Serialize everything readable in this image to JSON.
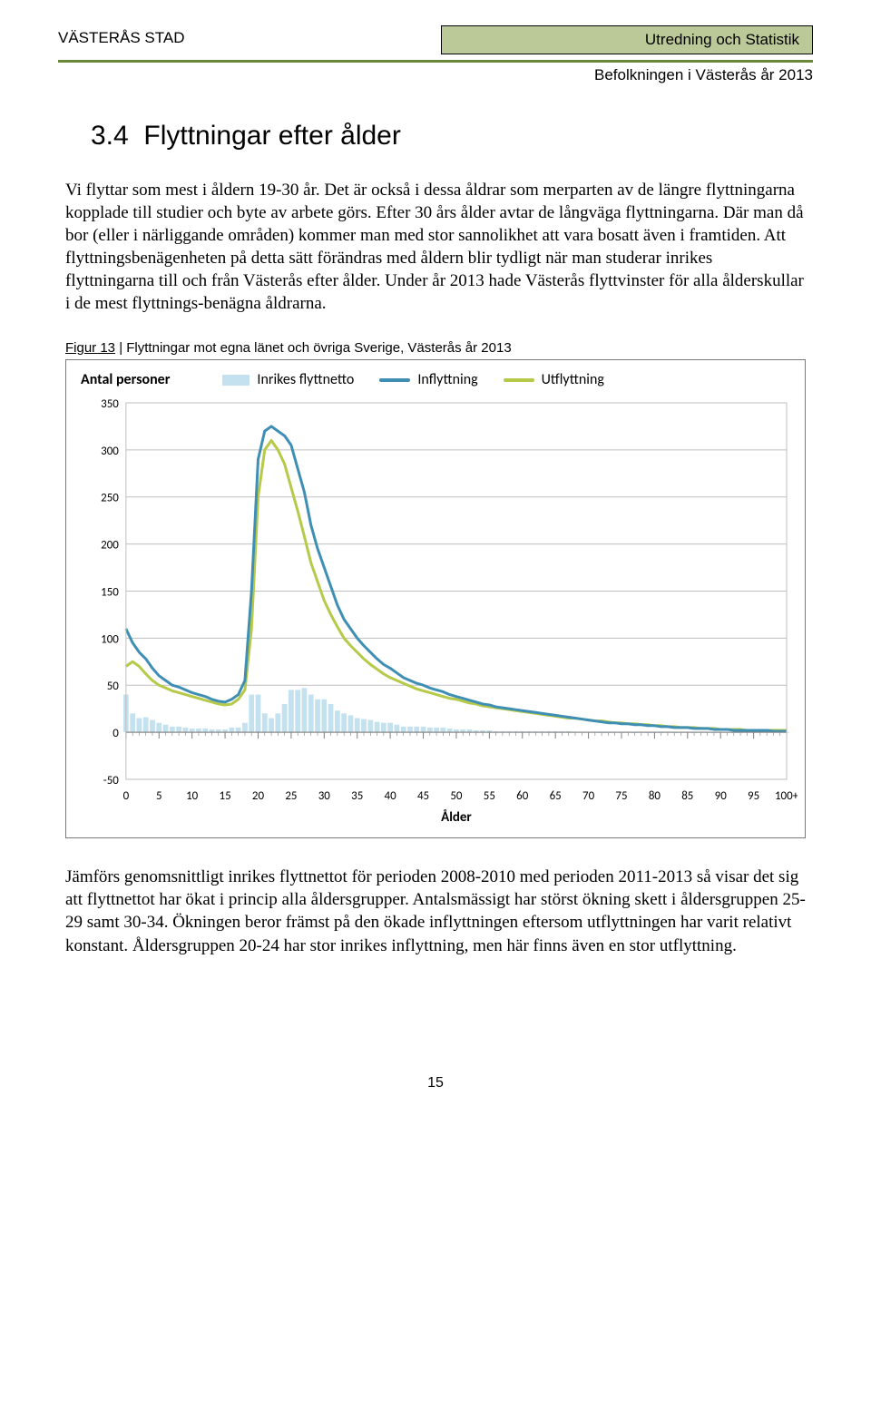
{
  "header": {
    "left": "VÄSTERÅS STAD",
    "rightBox": "Utredning och Statistik",
    "sub": "Befolkningen i Västerås år 2013"
  },
  "section": {
    "number": "3.4",
    "title": "Flyttningar efter ålder"
  },
  "paragraphs": {
    "p1": "Vi flyttar som mest i åldern 19-30 år. Det är också i dessa åldrar som merparten av de längre flyttningarna kopplade till studier och byte av arbete görs. Efter 30 års ålder avtar de långväga flyttningarna. Där man då bor (eller i närliggande områden) kommer man med stor sannolikhet att vara bosatt även i framtiden. Att flyttningsbenägenheten på detta sätt förändras med åldern blir tydligt när man studerar inrikes flyttningarna till och från Västerås efter ålder. Under år 2013 hade Västerås flyttvinster för alla ålderskullar i de mest flyttnings-benägna åldrarna.",
    "p2": "Jämförs genomsnittligt inrikes flyttnettot för perioden 2008-2010 med perioden 2011-2013 så visar det sig att flyttnettot har ökat i princip alla åldersgrupper. Antalsmässigt har störst ökning skett i åldersgruppen 25-29 samt 30-34. Ökningen beror främst på den ökade inflyttningen eftersom utflyttningen har varit relativt konstant. Åldersgruppen 20-24 har stor inrikes inflyttning, men här finns även en stor utflyttning."
  },
  "figure": {
    "label": "Figur 13",
    "caption": "Flyttningar mot egna länet och övriga Sverige, Västerås år 2013",
    "legendTitle": "Antal personer",
    "legend": {
      "netto": "Inrikes flyttnetto",
      "in": "Inflyttning",
      "ut": "Utflyttning"
    },
    "xlabel": "Ålder"
  },
  "chart": {
    "type": "line+bar",
    "ylim": [
      -50,
      350
    ],
    "ytick_step": 50,
    "xlim": [
      0,
      100
    ],
    "xtick_step": 5,
    "xticks_labels": [
      "0",
      "5",
      "10",
      "15",
      "20",
      "25",
      "30",
      "35",
      "40",
      "45",
      "50",
      "55",
      "60",
      "65",
      "70",
      "75",
      "80",
      "85",
      "90",
      "95",
      "100+"
    ],
    "colors": {
      "netto_bar": "#c3e1ef",
      "inflyttning": "#3f8fb5",
      "utflyttning": "#b6c948",
      "grid": "#bfbfbf",
      "axis": "#808080",
      "background": "#ffffff"
    },
    "line_width": 3,
    "label_fontsize": 13,
    "ages": [
      0,
      1,
      2,
      3,
      4,
      5,
      6,
      7,
      8,
      9,
      10,
      11,
      12,
      13,
      14,
      15,
      16,
      17,
      18,
      19,
      20,
      21,
      22,
      23,
      24,
      25,
      26,
      27,
      28,
      29,
      30,
      31,
      32,
      33,
      34,
      35,
      36,
      37,
      38,
      39,
      40,
      41,
      42,
      43,
      44,
      45,
      46,
      47,
      48,
      49,
      50,
      51,
      52,
      53,
      54,
      55,
      56,
      57,
      58,
      59,
      60,
      61,
      62,
      63,
      64,
      65,
      66,
      67,
      68,
      69,
      70,
      71,
      72,
      73,
      74,
      75,
      76,
      77,
      78,
      79,
      80,
      81,
      82,
      83,
      84,
      85,
      86,
      87,
      88,
      89,
      90,
      91,
      92,
      93,
      94,
      95,
      96,
      97,
      98,
      99,
      100
    ],
    "inflyttning": [
      110,
      95,
      85,
      78,
      68,
      60,
      55,
      50,
      48,
      45,
      42,
      40,
      38,
      35,
      33,
      32,
      35,
      40,
      55,
      150,
      290,
      320,
      325,
      320,
      315,
      305,
      280,
      255,
      220,
      195,
      175,
      155,
      135,
      120,
      110,
      100,
      92,
      85,
      78,
      72,
      68,
      63,
      58,
      55,
      52,
      50,
      47,
      45,
      43,
      40,
      38,
      36,
      34,
      32,
      30,
      29,
      27,
      26,
      25,
      24,
      23,
      22,
      21,
      20,
      19,
      18,
      17,
      16,
      15,
      14,
      13,
      12,
      11,
      10,
      10,
      9,
      9,
      8,
      8,
      7,
      7,
      6,
      6,
      5,
      5,
      5,
      4,
      4,
      4,
      3,
      3,
      3,
      2,
      2,
      2,
      2,
      2,
      2,
      1,
      1,
      1
    ],
    "utflyttning": [
      70,
      75,
      70,
      62,
      55,
      50,
      47,
      44,
      42,
      40,
      38,
      36,
      34,
      32,
      30,
      29,
      30,
      35,
      45,
      110,
      250,
      300,
      310,
      300,
      285,
      260,
      235,
      208,
      180,
      160,
      140,
      125,
      112,
      100,
      92,
      85,
      78,
      72,
      67,
      62,
      58,
      55,
      52,
      49,
      46,
      44,
      42,
      40,
      38,
      36,
      35,
      33,
      31,
      30,
      28,
      27,
      26,
      25,
      24,
      23,
      22,
      21,
      20,
      19,
      18,
      17,
      16,
      15,
      15,
      14,
      13,
      12,
      12,
      11,
      10,
      10,
      9,
      9,
      8,
      8,
      7,
      7,
      6,
      6,
      5,
      5,
      5,
      4,
      4,
      4,
      3,
      3,
      3,
      3,
      2,
      2,
      2,
      2,
      2,
      2,
      2
    ],
    "netto": [
      40,
      20,
      15,
      16,
      13,
      10,
      8,
      6,
      6,
      5,
      4,
      4,
      4,
      3,
      3,
      3,
      5,
      5,
      10,
      40,
      40,
      20,
      15,
      20,
      30,
      45,
      45,
      47,
      40,
      35,
      35,
      30,
      23,
      20,
      18,
      15,
      14,
      13,
      11,
      10,
      10,
      8,
      6,
      6,
      6,
      6,
      5,
      5,
      5,
      4,
      3,
      3,
      3,
      2,
      2,
      2,
      1,
      1,
      1,
      1,
      1,
      1,
      1,
      1,
      1,
      1,
      1,
      1,
      0,
      0,
      0,
      0,
      -1,
      -1,
      0,
      -1,
      0,
      -1,
      0,
      -1,
      0,
      -1,
      0,
      -1,
      0,
      0,
      -1,
      0,
      0,
      -1,
      0,
      0,
      -1,
      -1,
      0,
      0,
      0,
      0,
      -1,
      -1,
      -1
    ]
  },
  "pageNumber": "15"
}
